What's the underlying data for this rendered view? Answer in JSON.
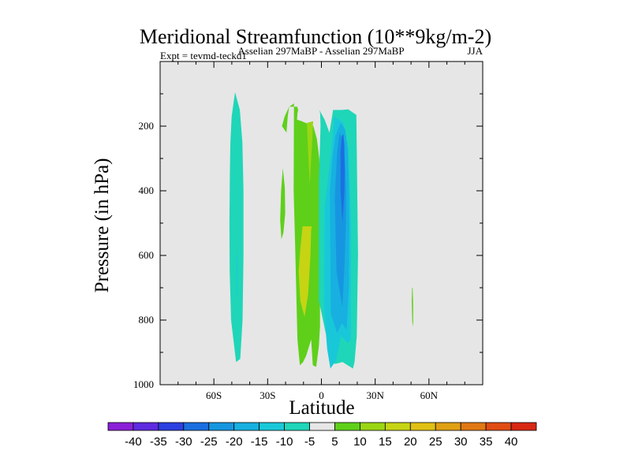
{
  "chart_data": {
    "type": "contour",
    "title": "Meridional Streamfunction (10**9kg/m-2)",
    "left_subtitle": "Expt = tevmd-teckd1",
    "center_subtitle": "Asselian 297MaBP - Asselian 297MaBP",
    "right_subtitle": "JJA",
    "xlabel": "Latitude",
    "ylabel": "Pressure (in hPa)",
    "xlim": [
      -90,
      90
    ],
    "ylim": [
      1000,
      0
    ],
    "x_ticks": [
      {
        "value": -60,
        "label": "60S"
      },
      {
        "value": -30,
        "label": "30S"
      },
      {
        "value": 0,
        "label": "0"
      },
      {
        "value": 30,
        "label": "30N"
      },
      {
        "value": 60,
        "label": "60N"
      }
    ],
    "y_ticks": [
      {
        "value": 200,
        "label": "200"
      },
      {
        "value": 400,
        "label": "400"
      },
      {
        "value": 600,
        "label": "600"
      },
      {
        "value": 800,
        "label": "800"
      },
      {
        "value": 1000,
        "label": "1000"
      }
    ],
    "background_color": "#e6e6e6",
    "colorbar": {
      "labels": [
        "-40",
        "-35",
        "-30",
        "-25",
        "-20",
        "-15",
        "-10",
        "-5",
        "5",
        "10",
        "15",
        "20",
        "25",
        "30",
        "35",
        "40"
      ],
      "colors": [
        "#8a20d8",
        "#5e2be0",
        "#2c3fe0",
        "#1a6fe0",
        "#1696e0",
        "#17b0e0",
        "#19c8d8",
        "#1fd6b8",
        "#e6e6e6",
        "#5ed01a",
        "#9ad614",
        "#c6d414",
        "#e0c014",
        "#e0a014",
        "#e07814",
        "#e04c14",
        "#d82814"
      ]
    },
    "features": [
      {
        "name": "southern-hemisphere-cell",
        "contour_level": -5,
        "color": "#1fd6b8",
        "lat": [
          -50.4,
          -51.2,
          -51.3,
          -51.1,
          -50.8,
          -50.1,
          -48.2,
          -45.5,
          -44.1,
          -43.5,
          -43.5,
          -44,
          -45.3,
          -47.6
        ],
        "pressure": [
          800,
          650,
          500,
          350,
          250,
          170,
          95,
          150,
          250,
          400,
          600,
          800,
          920,
          930
        ]
      },
      {
        "name": "isolated-positive-patch",
        "contour_level": 5,
        "color": "#5ed01a",
        "lat": [
          -22.5,
          -23,
          -22.3,
          -21.2,
          -20.2,
          -20.4,
          -21.5
        ],
        "pressure": [
          400,
          490,
          550,
          530,
          470,
          390,
          330
        ]
      },
      {
        "name": "equatorial-positive-cell",
        "contour_level": 5,
        "color": "#5ed01a",
        "lat": [
          -22,
          -20.5,
          -18,
          -15.3,
          -15.5,
          -14.7,
          -13.4,
          -12,
          -10.2,
          -8.5,
          -5.7,
          -4.8,
          -2.9,
          -1.4,
          -0.8,
          -0.8,
          -0.3,
          -1.2,
          -2.5,
          -4.5,
          -11,
          -13.6,
          -13.4,
          -13,
          -13.5,
          -14.6,
          -18,
          -18.8,
          -19.5
        ],
        "pressure": [
          200,
          170,
          140,
          130,
          400,
          560,
          860,
          940,
          930,
          910,
          860,
          940,
          945,
          880,
          820,
          640,
          470,
          300,
          240,
          200,
          185,
          180,
          160,
          150,
          140,
          140,
          140,
          170,
          220
        ]
      },
      {
        "name": "equatorial-positive-core-15",
        "contour_level": 15,
        "color": "#c6d414",
        "lat": [
          -10.5,
          -11.8,
          -12.7,
          -11.8,
          -9.4,
          -7.4,
          -6.1,
          -5.7,
          -5.3
        ],
        "pressure": [
          510,
          580,
          650,
          740,
          790,
          720,
          600,
          520,
          510
        ]
      },
      {
        "name": "equatorial-positive-core-10-upper",
        "contour_level": 10,
        "color": "#9ad614",
        "lat": [
          -8.1,
          -7.4,
          -6.5,
          -5.3,
          -4.6
        ],
        "pressure": [
          190,
          280,
          380,
          260,
          185
        ]
      },
      {
        "name": "northern-subtropical-negative-cell",
        "contour_level": -5,
        "color": "#1fd6b8",
        "lat": [
          -1.4,
          -1.4,
          -0.5,
          -0.7,
          -1.2,
          1.8,
          4.5,
          6.5,
          11,
          15,
          19.5,
          20.4,
          19.7,
          18.5,
          17.6,
          11.8,
          8.1,
          6
        ],
        "pressure": [
          740,
          370,
          200,
          160,
          150,
          180,
          220,
          150,
          150,
          148,
          165,
          600,
          850,
          930,
          950,
          930,
          935,
          935
        ]
      },
      {
        "name": "northern-negative-core-10",
        "contour_level": -10,
        "color": "#19c8d8",
        "lat": [
          1.8,
          1.4,
          3.2,
          5,
          8.2,
          11,
          14.6,
          16.4,
          16.5,
          15.2,
          12.3,
          7.2,
          5.4
        ],
        "pressure": [
          450,
          760,
          890,
          950,
          925,
          850,
          870,
          860,
          500,
          270,
          190,
          170,
          280
        ]
      },
      {
        "name": "northern-negative-core-15",
        "contour_level": -15,
        "color": "#17b0e0",
        "lat": [
          4.7,
          5.3,
          8.7,
          11.5,
          14.1,
          15.3,
          15.6,
          15.3,
          14.7,
          13.2,
          10.7,
          7.8,
          6.1
        ],
        "pressure": [
          400,
          780,
          840,
          810,
          830,
          700,
          500,
          380,
          270,
          210,
          190,
          230,
          300
        ]
      },
      {
        "name": "northern-negative-core-20",
        "contour_level": -20,
        "color": "#1696e0",
        "lat": [
          7.5,
          8.4,
          11.7,
          12.8,
          13.7,
          13.7,
          13.3,
          12.3,
          10.1,
          8.8
        ],
        "pressure": [
          420,
          650,
          760,
          640,
          500,
          400,
          330,
          250,
          220,
          280
        ]
      },
      {
        "name": "northern-negative-core-25",
        "contour_level": -25,
        "color": "#1a6fe0",
        "lat": [
          10.7,
          10.7,
          11.8,
          12.8,
          13,
          12.8,
          12.3,
          11.4
        ],
        "pressure": [
          280,
          400,
          500,
          400,
          330,
          260,
          225,
          230
        ]
      },
      {
        "name": "midlatitude-positive-patch",
        "contour_level": 5,
        "color": "#5ed01a",
        "lat": [
          50.6,
          50.4,
          50.7,
          51.2,
          51.2,
          50.9
        ],
        "pressure": [
          700,
          740,
          805,
          820,
          760,
          700
        ]
      },
      {
        "name": "sh-inner-negative-line",
        "contour_level": -10,
        "color": "#19c8d8",
        "lat": [
          -47.2,
          -47,
          -47.1,
          -47.4,
          -47.5
        ],
        "pressure": [
          580,
          620,
          750,
          690,
          620
        ]
      }
    ]
  }
}
